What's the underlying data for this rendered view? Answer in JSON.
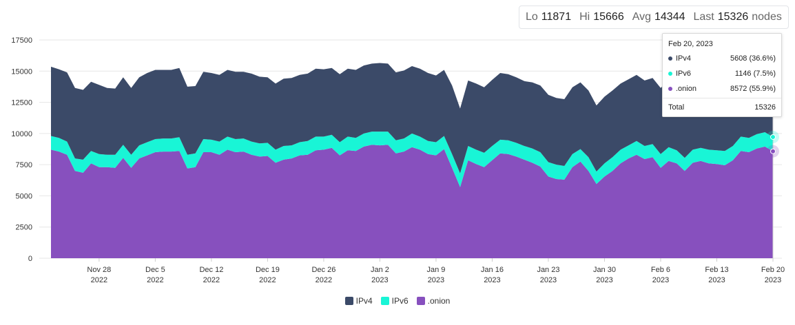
{
  "stats": {
    "lo_label": "Lo",
    "lo_value": "11871",
    "hi_label": "Hi",
    "hi_value": "15666",
    "avg_label": "Avg",
    "avg_value": "14344",
    "last_label": "Last",
    "last_value": "15326",
    "unit": "nodes"
  },
  "tooltip": {
    "date": "Feb 20, 2023",
    "rows": [
      {
        "name": "IPv4",
        "value": "5608 (36.6%)"
      },
      {
        "name": "IPv6",
        "value": "1146 (7.5%)"
      },
      {
        "name": ".onion",
        "value": "8572 (55.9%)"
      }
    ],
    "total_label": "Total",
    "total_value": "15326"
  },
  "legend": [
    {
      "name": "IPv4",
      "color": "#3b4a68"
    },
    {
      "name": "IPv6",
      "color": "#19f5d6"
    },
    {
      "name": ".onion",
      "color": "#8750be"
    }
  ],
  "chart_data": {
    "type": "area",
    "stacked": true,
    "grid": true,
    "legend_position": "bottom",
    "ylim": [
      0,
      17500
    ],
    "y_ticks": [
      0,
      2500,
      5000,
      7500,
      10000,
      12500,
      15000,
      17500
    ],
    "x_ticks": [
      {
        "date": "2022-11-28",
        "line1": "Nov 28",
        "line2": "2022"
      },
      {
        "date": "2022-12-05",
        "line1": "Dec 5",
        "line2": "2022"
      },
      {
        "date": "2022-12-12",
        "line1": "Dec 12",
        "line2": "2022"
      },
      {
        "date": "2022-12-19",
        "line1": "Dec 19",
        "line2": "2022"
      },
      {
        "date": "2022-12-26",
        "line1": "Dec 26",
        "line2": "2022"
      },
      {
        "date": "2023-01-02",
        "line1": "Jan 2",
        "line2": "2023"
      },
      {
        "date": "2023-01-09",
        "line1": "Jan 9",
        "line2": "2023"
      },
      {
        "date": "2023-01-16",
        "line1": "Jan 16",
        "line2": "2023"
      },
      {
        "date": "2023-01-23",
        "line1": "Jan 23",
        "line2": "2023"
      },
      {
        "date": "2023-01-30",
        "line1": "Jan 30",
        "line2": "2023"
      },
      {
        "date": "2023-02-06",
        "line1": "Feb 6",
        "line2": "2023"
      },
      {
        "date": "2023-02-13",
        "line1": "Feb 13",
        "line2": "2023"
      },
      {
        "date": "2023-02-20",
        "line1": "Feb 20",
        "line2": "2023"
      }
    ],
    "x": [
      "2022-11-22",
      "2022-11-23",
      "2022-11-24",
      "2022-11-25",
      "2022-11-26",
      "2022-11-27",
      "2022-11-28",
      "2022-11-29",
      "2022-11-30",
      "2022-12-01",
      "2022-12-02",
      "2022-12-03",
      "2022-12-04",
      "2022-12-05",
      "2022-12-06",
      "2022-12-07",
      "2022-12-08",
      "2022-12-09",
      "2022-12-10",
      "2022-12-11",
      "2022-12-12",
      "2022-12-13",
      "2022-12-14",
      "2022-12-15",
      "2022-12-16",
      "2022-12-17",
      "2022-12-18",
      "2022-12-19",
      "2022-12-20",
      "2022-12-21",
      "2022-12-22",
      "2022-12-23",
      "2022-12-24",
      "2022-12-25",
      "2022-12-26",
      "2022-12-27",
      "2022-12-28",
      "2022-12-29",
      "2022-12-30",
      "2022-12-31",
      "2023-01-01",
      "2023-01-02",
      "2023-01-03",
      "2023-01-04",
      "2023-01-05",
      "2023-01-06",
      "2023-01-07",
      "2023-01-08",
      "2023-01-09",
      "2023-01-10",
      "2023-01-11",
      "2023-01-12",
      "2023-01-13",
      "2023-01-14",
      "2023-01-15",
      "2023-01-16",
      "2023-01-17",
      "2023-01-18",
      "2023-01-19",
      "2023-01-20",
      "2023-01-21",
      "2023-01-22",
      "2023-01-23",
      "2023-01-24",
      "2023-01-25",
      "2023-01-26",
      "2023-01-27",
      "2023-01-28",
      "2023-01-29",
      "2023-01-30",
      "2023-01-31",
      "2023-02-01",
      "2023-02-02",
      "2023-02-03",
      "2023-02-04",
      "2023-02-05",
      "2023-02-06",
      "2023-02-07",
      "2023-02-08",
      "2023-02-09",
      "2023-02-10",
      "2023-02-11",
      "2023-02-12",
      "2023-02-13",
      "2023-02-14",
      "2023-02-15",
      "2023-02-16",
      "2023-02-17",
      "2023-02-18",
      "2023-02-19",
      "2023-02-20"
    ],
    "series": [
      {
        "name": ".onion",
        "values": [
          8700,
          8550,
          8300,
          7000,
          6850,
          7600,
          7300,
          7300,
          7250,
          8050,
          7250,
          8000,
          8250,
          8500,
          8550,
          8550,
          8600,
          7200,
          7300,
          8500,
          8500,
          8300,
          8700,
          8500,
          8550,
          8300,
          8150,
          8200,
          7650,
          7900,
          8000,
          8250,
          8300,
          8650,
          8700,
          8850,
          8250,
          8650,
          8600,
          8950,
          9100,
          9050,
          9100,
          8400,
          8550,
          8900,
          8700,
          8350,
          8250,
          8750,
          7250,
          5700,
          7850,
          7550,
          7300,
          7850,
          8400,
          8350,
          8150,
          7900,
          7650,
          7350,
          6550,
          6350,
          6300,
          7300,
          7750,
          7000,
          5950,
          6550,
          7000,
          7600,
          8000,
          8300,
          7950,
          8100,
          7250,
          7800,
          7600,
          7000,
          7650,
          7800,
          7600,
          7550,
          7450,
          7850,
          8600,
          8500,
          8800,
          8950,
          8572
        ]
      },
      {
        "name": "IPv6",
        "values": [
          1100,
          1100,
          1050,
          1000,
          1050,
          1000,
          1050,
          1000,
          1050,
          1050,
          1050,
          1050,
          1050,
          1050,
          1050,
          1050,
          1100,
          1100,
          1100,
          1050,
          1000,
          1050,
          1050,
          1050,
          1050,
          1050,
          1050,
          1050,
          1050,
          1100,
          1050,
          1050,
          1100,
          1100,
          1050,
          1050,
          1050,
          1100,
          1050,
          1050,
          1050,
          1100,
          1050,
          1050,
          1050,
          1100,
          1050,
          1050,
          1050,
          1050,
          1100,
          1100,
          1150,
          1150,
          1150,
          1150,
          1100,
          1100,
          1100,
          1100,
          1150,
          1150,
          1150,
          1150,
          1100,
          1050,
          1000,
          1100,
          1000,
          1050,
          1100,
          1100,
          1050,
          1100,
          1050,
          1050,
          1100,
          1100,
          1050,
          1050,
          1050,
          1050,
          1100,
          1100,
          1150,
          1150,
          1150,
          1150,
          1150,
          1150,
          1146
        ]
      },
      {
        "name": "IPv4",
        "values": [
          5550,
          5500,
          5550,
          5650,
          5600,
          5550,
          5550,
          5350,
          5300,
          5400,
          5350,
          5450,
          5550,
          5550,
          5500,
          5500,
          5550,
          5450,
          5400,
          5400,
          5350,
          5350,
          5350,
          5400,
          5350,
          5450,
          5350,
          5250,
          5300,
          5400,
          5400,
          5400,
          5400,
          5450,
          5400,
          5350,
          5450,
          5450,
          5450,
          5450,
          5450,
          5500,
          5450,
          5450,
          5450,
          5400,
          5450,
          5450,
          5350,
          5300,
          5500,
          5200,
          5250,
          5300,
          5250,
          5300,
          5350,
          5300,
          5250,
          5200,
          5300,
          5350,
          5400,
          5350,
          5350,
          5350,
          5350,
          5350,
          5300,
          5350,
          5350,
          5300,
          5300,
          5300,
          5250,
          5300,
          5300,
          5350,
          5350,
          5350,
          5300,
          5350,
          5350,
          5350,
          5350,
          5350,
          5400,
          5450,
          5500,
          5550,
          5608
        ]
      }
    ]
  }
}
